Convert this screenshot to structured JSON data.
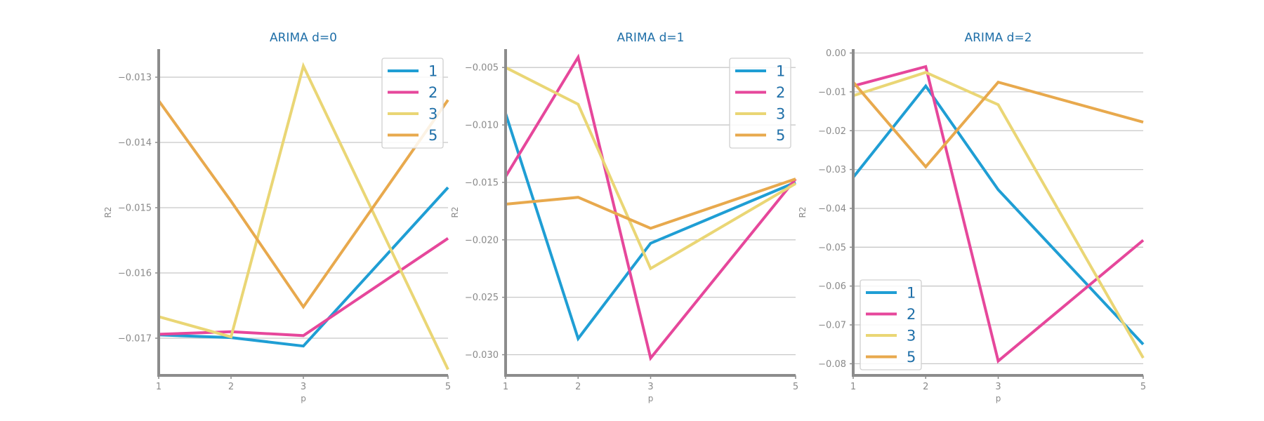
{
  "chart_data": [
    {
      "type": "line",
      "title": "ARIMA d=0",
      "xlabel": "p",
      "ylabel": "R2",
      "x": [
        1,
        2,
        3,
        5
      ],
      "xticks": [
        "1",
        "2",
        "3",
        "5"
      ],
      "xlim": [
        1,
        5
      ],
      "ylim": [
        -0.01757,
        -0.01257
      ],
      "yticks": [
        "−0.013",
        "−0.014",
        "−0.015",
        "−0.016",
        "−0.017"
      ],
      "ytick_values": [
        -0.013,
        -0.014,
        -0.015,
        -0.016,
        -0.017
      ],
      "grid": "y",
      "legend_position": "top-right",
      "series": [
        {
          "name": "1",
          "color": "#1f9ed4",
          "values": [
            -0.01695,
            -0.01699,
            -0.01712,
            -0.01469
          ]
        },
        {
          "name": "2",
          "color": "#e6479b",
          "values": [
            -0.01694,
            -0.0169,
            -0.01696,
            -0.01547
          ]
        },
        {
          "name": "3",
          "color": "#ead675",
          "values": [
            -0.01667,
            -0.01698,
            -0.01283,
            -0.01748
          ]
        },
        {
          "name": "5",
          "color": "#e8a94d",
          "values": [
            -0.01336,
            -0.0149,
            -0.01652,
            -0.01335
          ]
        }
      ]
    },
    {
      "type": "line",
      "title": "ARIMA d=1",
      "xlabel": "p",
      "ylabel": "R2",
      "x": [
        1,
        2,
        3,
        5
      ],
      "xticks": [
        "1",
        "2",
        "3",
        "5"
      ],
      "xlim": [
        1,
        5
      ],
      "ylim": [
        -0.0318,
        -0.0034
      ],
      "yticks": [
        "−0.005",
        "−0.010",
        "−0.015",
        "−0.020",
        "−0.025",
        "−0.030"
      ],
      "ytick_values": [
        -0.005,
        -0.01,
        -0.015,
        -0.02,
        -0.025,
        -0.03
      ],
      "grid": "y",
      "legend_position": "top-right",
      "series": [
        {
          "name": "1",
          "color": "#1f9ed4",
          "values": [
            -0.009,
            -0.0286,
            -0.0203,
            -0.015
          ]
        },
        {
          "name": "2",
          "color": "#e6479b",
          "values": [
            -0.0145,
            -0.0041,
            -0.0303,
            -0.0147
          ]
        },
        {
          "name": "3",
          "color": "#ead675",
          "values": [
            -0.005,
            -0.0082,
            -0.0225,
            -0.0151
          ]
        },
        {
          "name": "5",
          "color": "#e8a94d",
          "values": [
            -0.0169,
            -0.0163,
            -0.019,
            -0.0147
          ]
        }
      ]
    },
    {
      "type": "line",
      "title": "ARIMA d=2",
      "xlabel": "p",
      "ylabel": "R2",
      "x": [
        1,
        2,
        3,
        5
      ],
      "xticks": [
        "1",
        "2",
        "3",
        "5"
      ],
      "xlim": [
        1,
        5
      ],
      "ylim": [
        -0.083,
        0.001
      ],
      "yticks": [
        "0.00",
        "−0.01",
        "−0.02",
        "−0.03",
        "−0.04",
        "−0.05",
        "−0.06",
        "−0.07",
        "−0.08"
      ],
      "ytick_values": [
        0.0,
        -0.01,
        -0.02,
        -0.03,
        -0.04,
        -0.05,
        -0.06,
        -0.07,
        -0.08
      ],
      "grid": "y",
      "legend_position": "bottom-left",
      "series": [
        {
          "name": "1",
          "color": "#1f9ed4",
          "values": [
            -0.032,
            -0.0085,
            -0.0352,
            -0.075
          ]
        },
        {
          "name": "2",
          "color": "#e6479b",
          "values": [
            -0.0085,
            -0.0035,
            -0.0793,
            -0.0482
          ]
        },
        {
          "name": "3",
          "color": "#ead675",
          "values": [
            -0.011,
            -0.005,
            -0.0133,
            -0.0785
          ]
        },
        {
          "name": "5",
          "color": "#e8a94d",
          "values": [
            -0.0075,
            -0.0293,
            -0.0075,
            -0.0178
          ]
        }
      ]
    }
  ]
}
